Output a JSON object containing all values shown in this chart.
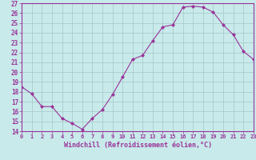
{
  "x": [
    0,
    1,
    2,
    3,
    4,
    5,
    6,
    7,
    8,
    9,
    10,
    11,
    12,
    13,
    14,
    15,
    16,
    17,
    18,
    19,
    20,
    21,
    22,
    23
  ],
  "y": [
    18.5,
    17.8,
    16.5,
    16.5,
    15.3,
    14.8,
    14.2,
    15.3,
    16.2,
    17.7,
    19.5,
    21.3,
    21.7,
    23.2,
    24.6,
    24.8,
    26.6,
    26.7,
    26.6,
    26.1,
    24.8,
    23.8,
    22.1,
    21.3
  ],
  "ylim": [
    14,
    27
  ],
  "xlim": [
    0,
    23
  ],
  "yticks": [
    14,
    15,
    16,
    17,
    18,
    19,
    20,
    21,
    22,
    23,
    24,
    25,
    26,
    27
  ],
  "xticks": [
    0,
    1,
    2,
    3,
    4,
    5,
    6,
    7,
    8,
    9,
    10,
    11,
    12,
    13,
    14,
    15,
    16,
    17,
    18,
    19,
    20,
    21,
    22,
    23
  ],
  "xlabel": "Windchill (Refroidissement éolien,°C)",
  "line_color": "#993399",
  "marker": "D",
  "marker_size": 2.0,
  "bg_color": "#c8eaea",
  "grid_color": "#aacccc",
  "tick_color": "#993399",
  "label_color": "#993399",
  "spine_color": "#993399"
}
